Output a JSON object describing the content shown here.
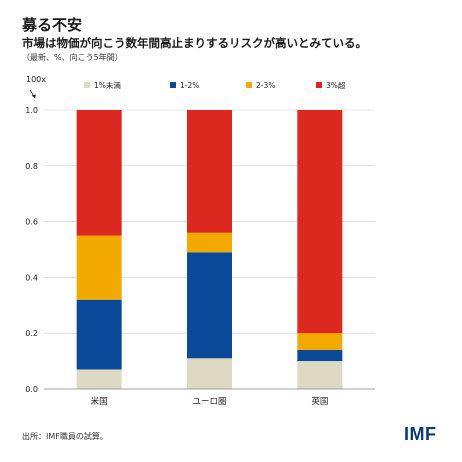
{
  "header": {
    "title": "募る不安",
    "subtitle": "市場は物価が向こう数年間高止まりするリスクが高いとみている。",
    "note": "（最新、%、向こう5年間）"
  },
  "footer": {
    "source": "出所：IMF職員の試算。",
    "logo": "IMF"
  },
  "colors": {
    "series": [
      "#ddd9c3",
      "#0a4a99",
      "#f2a900",
      "#dc291f"
    ]
  },
  "chart_data": {
    "type": "bar",
    "stacked": true,
    "unit_label": "100x",
    "categories": [
      "米国",
      "ユーロ圏",
      "英国"
    ],
    "ylim": [
      0,
      1.0
    ],
    "yticks": [
      "0.0",
      "0.2",
      "0.4",
      "0.6",
      "0.8",
      "1.0"
    ],
    "legend_position": "top",
    "series": [
      {
        "name": "1%未満",
        "values": [
          0.07,
          0.11,
          0.1
        ]
      },
      {
        "name": "1-2%",
        "values": [
          0.25,
          0.38,
          0.04
        ]
      },
      {
        "name": "2-3%",
        "values": [
          0.23,
          0.07,
          0.06
        ]
      },
      {
        "name": "3%超",
        "values": [
          0.45,
          0.44,
          0.8
        ]
      }
    ]
  }
}
